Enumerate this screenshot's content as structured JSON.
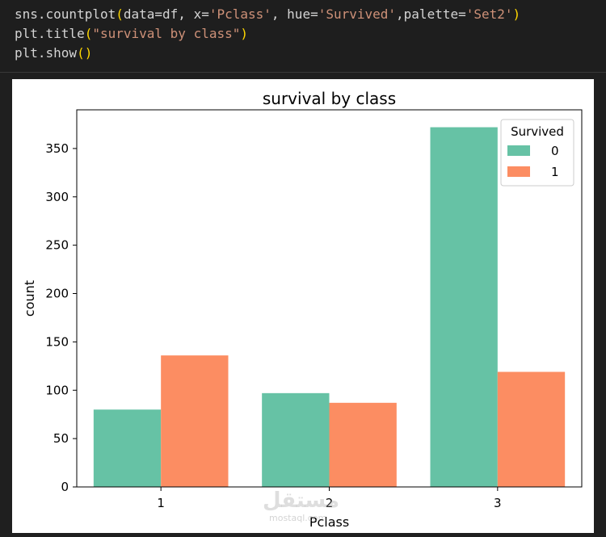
{
  "code": {
    "lines": [
      [
        {
          "t": "sns.countplot",
          "c": "plain"
        },
        {
          "t": "(",
          "c": "paren"
        },
        {
          "t": "data=df, x=",
          "c": "plain"
        },
        {
          "t": "'Pclass'",
          "c": "str"
        },
        {
          "t": ", hue=",
          "c": "plain"
        },
        {
          "t": "'Survived'",
          "c": "str"
        },
        {
          "t": ",palette=",
          "c": "plain"
        },
        {
          "t": "'Set2'",
          "c": "str"
        },
        {
          "t": ")",
          "c": "paren"
        }
      ],
      [
        {
          "t": "plt.title",
          "c": "plain"
        },
        {
          "t": "(",
          "c": "paren"
        },
        {
          "t": "\"survival by class\"",
          "c": "str"
        },
        {
          "t": ")",
          "c": "paren"
        }
      ],
      [
        {
          "t": "plt.show",
          "c": "plain"
        },
        {
          "t": "()",
          "c": "paren"
        }
      ]
    ]
  },
  "chart_data": {
    "type": "bar",
    "title": "survival by class",
    "xlabel": "Pclass",
    "ylabel": "count",
    "categories": [
      "1",
      "2",
      "3"
    ],
    "series": [
      {
        "name": "0",
        "values": [
          80,
          97,
          372
        ],
        "color": "#66c2a5"
      },
      {
        "name": "1",
        "values": [
          136,
          87,
          119
        ],
        "color": "#fc8d62"
      }
    ],
    "ylim": [
      0,
      390
    ],
    "yticks": [
      0,
      50,
      100,
      150,
      200,
      250,
      300,
      350
    ],
    "legend": {
      "title": "Survived",
      "placement": "top-right"
    },
    "grid": false
  },
  "watermark": {
    "text": "مستقل",
    "sub": "mostaql.com"
  }
}
